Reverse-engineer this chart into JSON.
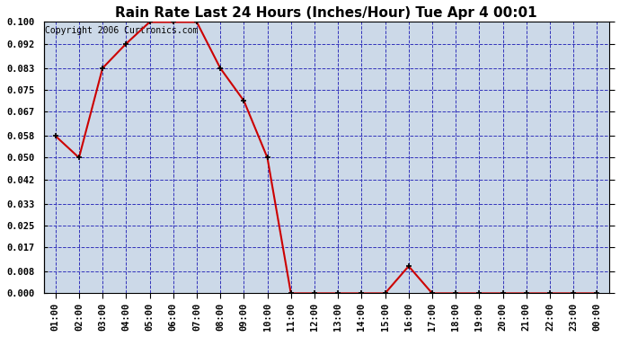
{
  "title": "Rain Rate Last 24 Hours (Inches/Hour) Tue Apr 4 00:01",
  "copyright_text": "Copyright 2006 Curtronics.com",
  "x_labels": [
    "01:00",
    "02:00",
    "03:00",
    "04:00",
    "05:00",
    "06:00",
    "07:00",
    "08:00",
    "09:00",
    "10:00",
    "11:00",
    "12:00",
    "13:00",
    "14:00",
    "15:00",
    "16:00",
    "17:00",
    "18:00",
    "19:00",
    "20:00",
    "21:00",
    "22:00",
    "23:00",
    "00:00"
  ],
  "x_values": [
    1,
    2,
    3,
    4,
    5,
    6,
    7,
    8,
    9,
    10,
    11,
    12,
    13,
    14,
    15,
    16,
    17,
    18,
    19,
    20,
    21,
    22,
    23,
    24
  ],
  "y_values": [
    0.058,
    0.05,
    0.083,
    0.092,
    0.1,
    0.1,
    0.1,
    0.083,
    0.071,
    0.05,
    0.0,
    0.0,
    0.0,
    0.0,
    0.0,
    0.01,
    0.0,
    0.0,
    0.0,
    0.0,
    0.0,
    0.0,
    0.0,
    0.0
  ],
  "ylim": [
    0.0,
    0.1
  ],
  "yticks": [
    0.0,
    0.008,
    0.017,
    0.025,
    0.033,
    0.042,
    0.05,
    0.058,
    0.067,
    0.075,
    0.083,
    0.092,
    0.1
  ],
  "line_color": "#cc0000",
  "marker_color": "#000000",
  "plot_bg_color": "#ccd9e8",
  "outer_bg_color": "#ffffff",
  "grid_color": "#3333bb",
  "title_color": "#000000",
  "title_fontsize": 11,
  "copyright_fontsize": 7,
  "tick_label_fontsize": 7.5,
  "figsize": [
    6.9,
    3.75
  ],
  "dpi": 100
}
